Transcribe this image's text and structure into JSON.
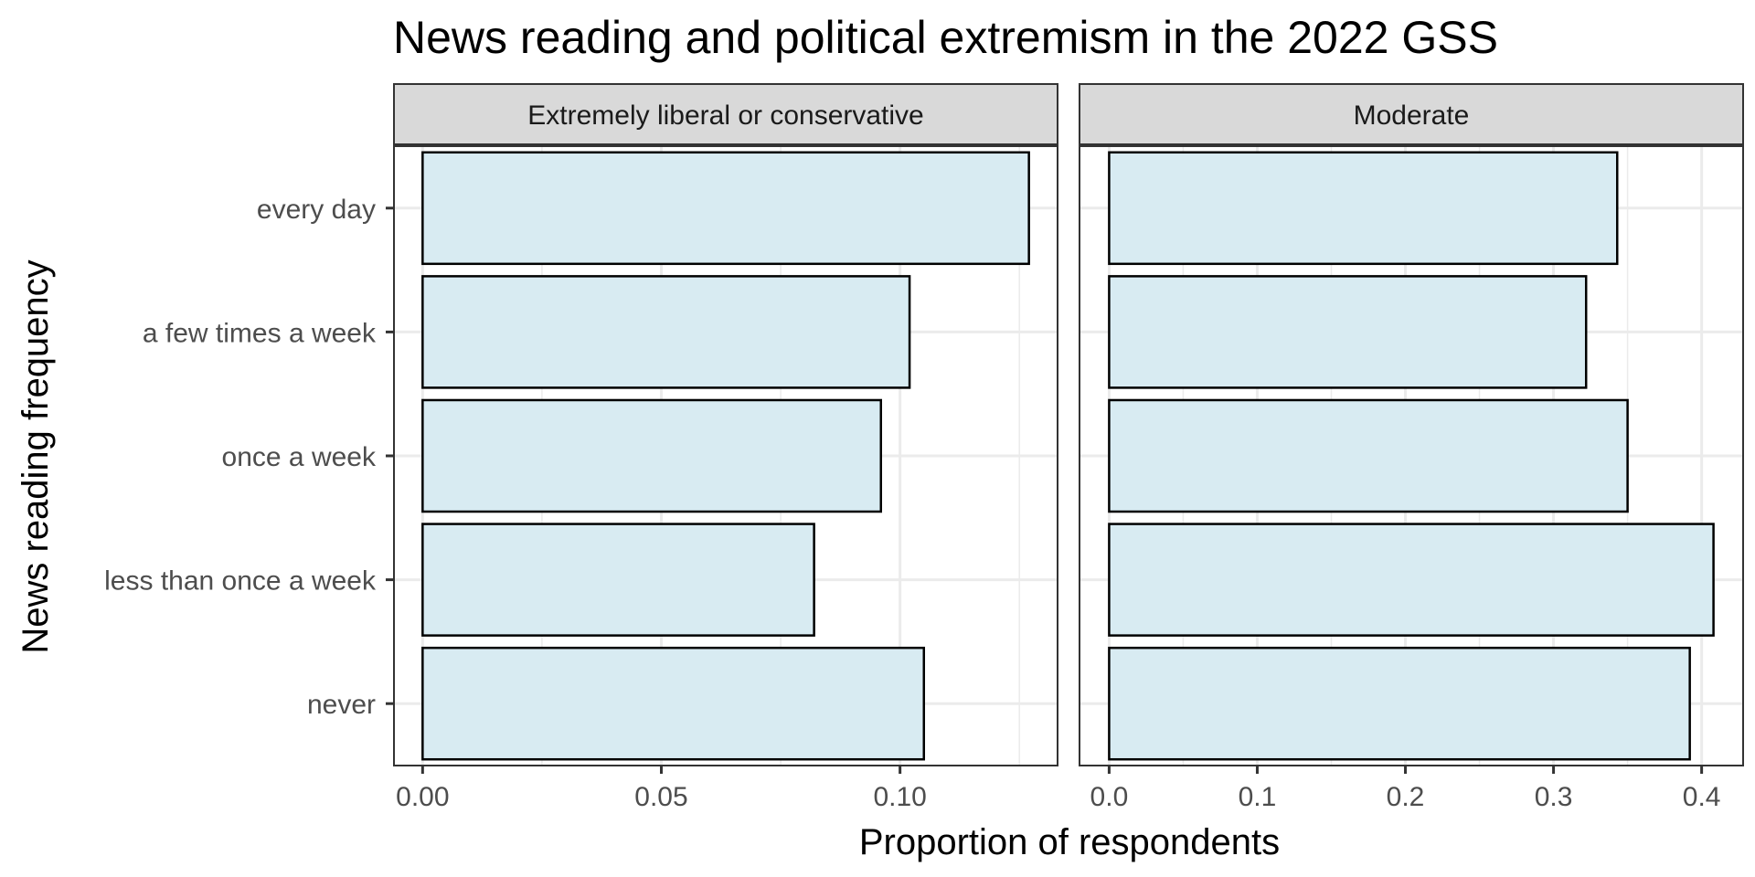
{
  "chart_data": {
    "type": "bar",
    "orientation": "horizontal",
    "title": "News reading and political extremism in the 2022 GSS",
    "xlabel": "Proportion of respondents",
    "ylabel": "News reading frequency",
    "categories": [
      "every day",
      "a few times a week",
      "once a week",
      "less than once a week",
      "never"
    ],
    "bar_color": "#d8ebf2",
    "bar_outline": "#000000",
    "strip_color": "#d9d9d9",
    "panel_border": "#333333",
    "grid_color": "#ebebeb",
    "grid": true,
    "legend": "none",
    "panels": [
      {
        "name": "Extremely liberal or conservative",
        "values": [
          0.127,
          0.102,
          0.096,
          0.082,
          0.105
        ],
        "xlim": [
          -0.006,
          0.133
        ],
        "ticks": [
          0.0,
          0.05,
          0.1
        ],
        "tick_labels": [
          "0.00",
          "0.05",
          "0.10"
        ],
        "minor_ticks": [
          0.025,
          0.075,
          0.125
        ]
      },
      {
        "name": "Moderate",
        "values": [
          0.343,
          0.322,
          0.35,
          0.408,
          0.392
        ],
        "xlim": [
          -0.02,
          0.428
        ],
        "ticks": [
          0.0,
          0.1,
          0.2,
          0.3,
          0.4
        ],
        "tick_labels": [
          "0.0",
          "0.1",
          "0.2",
          "0.3",
          "0.4"
        ],
        "minor_ticks": [
          0.05,
          0.15,
          0.25,
          0.35
        ]
      }
    ]
  }
}
